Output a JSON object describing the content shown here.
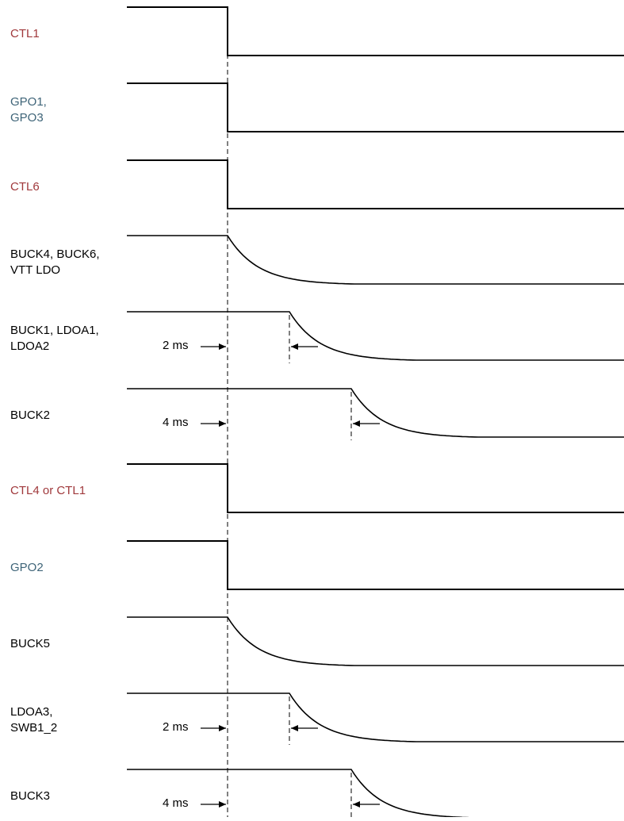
{
  "colors": {
    "control_label": "#A0393C",
    "gpo_label": "#3E6478",
    "rail_label": "#000000",
    "trace": "#000000"
  },
  "signals": [
    {
      "id": "ctl1",
      "label": "CTL1",
      "kind": "control",
      "shape": "step"
    },
    {
      "id": "gpo1-gpo3",
      "label": "GPO1,\nGPO3",
      "kind": "gpo",
      "shape": "step"
    },
    {
      "id": "ctl6",
      "label": "CTL6",
      "kind": "control",
      "shape": "step"
    },
    {
      "id": "buck4-buck6-vtt",
      "label": "BUCK4, BUCK6,\nVTT LDO",
      "kind": "rail",
      "shape": "decay",
      "delay_ms": 0
    },
    {
      "id": "buck1-ldoa1-ldoa2",
      "label": "BUCK1, LDOA1,\nLDOA2",
      "kind": "rail",
      "shape": "decay",
      "delay_ms": 2,
      "delay_label": "2 ms"
    },
    {
      "id": "buck2",
      "label": "BUCK2",
      "kind": "rail",
      "shape": "decay",
      "delay_ms": 4,
      "delay_label": "4 ms"
    },
    {
      "id": "ctl4-ctl1",
      "label": "CTL4 or CTL1",
      "kind": "control",
      "shape": "step"
    },
    {
      "id": "gpo2",
      "label": "GPO2",
      "kind": "gpo",
      "shape": "step"
    },
    {
      "id": "buck5",
      "label": "BUCK5",
      "kind": "rail",
      "shape": "decay",
      "delay_ms": 0
    },
    {
      "id": "ldoa3-swb1-2",
      "label": "LDOA3,\nSWB1_2",
      "kind": "rail",
      "shape": "decay",
      "delay_ms": 2,
      "delay_label": "2 ms"
    },
    {
      "id": "buck3",
      "label": "BUCK3",
      "kind": "rail",
      "shape": "decay",
      "delay_ms": 4,
      "delay_label": "4 ms"
    }
  ]
}
